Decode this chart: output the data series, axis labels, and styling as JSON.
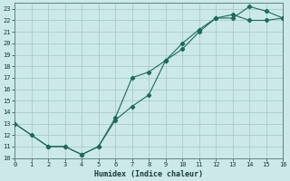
{
  "xlabel": "Humidex (Indice chaleur)",
  "bg_color": "#cce8e8",
  "grid_color": "#aacccc",
  "line_color": "#1a6b5a",
  "line1_x": [
    0,
    1,
    2,
    3,
    4,
    5,
    6,
    7,
    8,
    9,
    10,
    11,
    12,
    13,
    14,
    15,
    16
  ],
  "line1_y": [
    13.0,
    12.0,
    11.0,
    11.0,
    10.3,
    11.0,
    13.3,
    14.5,
    15.5,
    18.5,
    19.5,
    21.0,
    22.2,
    22.2,
    23.2,
    22.8,
    22.2
  ],
  "line2_x": [
    0,
    2,
    3,
    4,
    5,
    6,
    7,
    8,
    9,
    10,
    11,
    12,
    13,
    14,
    15,
    16
  ],
  "line2_y": [
    13.0,
    11.0,
    11.0,
    10.3,
    11.0,
    13.5,
    17.0,
    17.5,
    18.5,
    20.0,
    21.2,
    22.2,
    22.5,
    22.0,
    22.0,
    22.2
  ],
  "xlim": [
    0,
    16
  ],
  "ylim": [
    10,
    23.5
  ],
  "xticks": [
    0,
    1,
    2,
    3,
    4,
    5,
    6,
    7,
    8,
    9,
    10,
    11,
    12,
    13,
    14,
    15,
    16
  ],
  "yticks": [
    10,
    11,
    12,
    13,
    14,
    15,
    16,
    17,
    18,
    19,
    20,
    21,
    22,
    23
  ]
}
